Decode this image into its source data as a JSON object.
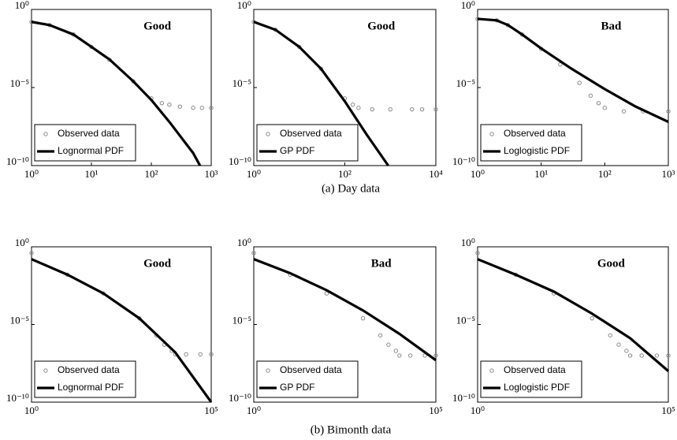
{
  "captions": [
    "(a) Day data",
    "(b) Bimonth data"
  ],
  "chart_data": [
    {
      "type": "line",
      "annotation": "Good",
      "xscale": "log",
      "yscale": "log",
      "legend": "lower left",
      "xlim": [
        1,
        1000
      ],
      "xticks": [
        {
          "value": 1,
          "label": "10⁰"
        },
        {
          "value": 10,
          "label": "10¹"
        },
        {
          "value": 100,
          "label": "10²"
        },
        {
          "value": 1000,
          "label": "10³"
        }
      ],
      "ylim": [
        1e-10,
        1
      ],
      "yticks": [
        {
          "value": 1,
          "label": "10⁰"
        },
        {
          "value": 1e-05,
          "label": "10⁻⁵"
        },
        {
          "value": 1e-10,
          "label": "10⁻¹⁰"
        }
      ],
      "series": [
        {
          "name": "Observed data",
          "color": "#8a8a8a",
          "marker": true,
          "x": [
            1,
            2,
            5,
            10,
            20,
            50,
            100,
            150,
            200,
            300,
            500,
            700,
            1000
          ],
          "values": [
            0.16,
            0.1,
            0.025,
            0.004,
            0.0006,
            2.5e-05,
            2e-06,
            1e-06,
            8e-07,
            6e-07,
            5e-07,
            5e-07,
            5e-07
          ]
        },
        {
          "name": "Lognormal PDF",
          "color": "#000000",
          "marker": false,
          "x": [
            1,
            2,
            5,
            10,
            20,
            50,
            100,
            200,
            500,
            650
          ],
          "values": [
            0.16,
            0.1,
            0.025,
            0.004,
            0.00063,
            2.5e-05,
            1.6e-06,
            6.3e-08,
            6.3e-10,
            1e-10
          ]
        }
      ]
    },
    {
      "type": "line",
      "annotation": "Good",
      "xscale": "log",
      "yscale": "log",
      "legend": "lower left",
      "xlim": [
        1,
        10000
      ],
      "xticks": [
        {
          "value": 1,
          "label": "10⁰"
        },
        {
          "value": 100,
          "label": "10²"
        },
        {
          "value": 10000,
          "label": "10⁴"
        }
      ],
      "ylim": [
        1e-10,
        1
      ],
      "yticks": [
        {
          "value": 1,
          "label": "10⁰"
        },
        {
          "value": 1e-05,
          "label": "10⁻⁵"
        },
        {
          "value": 1e-10,
          "label": "10⁻¹⁰"
        }
      ],
      "series": [
        {
          "name": "Observed data",
          "color": "#8a8a8a",
          "marker": true,
          "x": [
            1,
            3,
            10,
            30,
            100,
            150,
            200,
            400,
            1000,
            3000,
            5000,
            10000
          ],
          "values": [
            0.16,
            0.05,
            0.004,
            0.00016,
            2e-06,
            8e-07,
            5e-07,
            4e-07,
            4e-07,
            4e-07,
            4e-07,
            4e-07
          ]
        },
        {
          "name": "GP PDF",
          "color": "#000000",
          "marker": false,
          "x": [
            1,
            3,
            10,
            30,
            100,
            300,
            900
          ],
          "values": [
            0.16,
            0.05,
            0.004,
            0.00016,
            1.3e-06,
            1e-08,
            1e-10
          ]
        }
      ]
    },
    {
      "type": "line",
      "annotation": "Bad",
      "xscale": "log",
      "yscale": "log",
      "legend": "lower left",
      "xlim": [
        1,
        1000
      ],
      "xticks": [
        {
          "value": 1,
          "label": "10⁰"
        },
        {
          "value": 10,
          "label": "10¹"
        },
        {
          "value": 100,
          "label": "10²"
        },
        {
          "value": 1000,
          "label": "10³"
        }
      ],
      "ylim": [
        1e-10,
        1
      ],
      "yticks": [
        {
          "value": 1,
          "label": "10⁰"
        },
        {
          "value": 1e-05,
          "label": "10⁻⁵"
        },
        {
          "value": 1e-10,
          "label": "10⁻¹⁰"
        }
      ],
      "series": [
        {
          "name": "Observed data",
          "color": "#8a8a8a",
          "marker": true,
          "x": [
            1,
            2,
            3,
            5,
            10,
            20,
            40,
            60,
            80,
            100,
            200,
            400,
            1000
          ],
          "values": [
            0.25,
            0.2,
            0.1,
            0.025,
            0.003,
            0.0003,
            2e-05,
            3e-06,
            1e-06,
            5e-07,
            3e-07,
            3e-07,
            3e-07
          ]
        },
        {
          "name": "Loglogistic PDF",
          "color": "#000000",
          "marker": false,
          "x": [
            1,
            2,
            3,
            5,
            10,
            30,
            100,
            300,
            1000
          ],
          "values": [
            0.25,
            0.2,
            0.1,
            0.025,
            0.0032,
            0.00016,
            7.9e-06,
            6.3e-07,
            6.3e-08
          ]
        }
      ]
    },
    {
      "type": "line",
      "annotation": "Good",
      "xscale": "log",
      "yscale": "log",
      "legend": "lower left",
      "xlim": [
        1,
        100000
      ],
      "xticks": [
        {
          "value": 1,
          "label": "10⁰"
        },
        {
          "value": 100000,
          "label": "10⁵"
        }
      ],
      "ylim": [
        1e-10,
        1
      ],
      "yticks": [
        {
          "value": 1,
          "label": "10⁰"
        },
        {
          "value": 1e-05,
          "label": "10⁻⁵"
        },
        {
          "value": 1e-10,
          "label": "10⁻¹⁰"
        }
      ],
      "series": [
        {
          "name": "Observed data",
          "color": "#8a8a8a",
          "marker": true,
          "x": [
            1,
            10,
            100,
            1000,
            3000,
            5000,
            8000,
            10000,
            20000,
            50000,
            100000
          ],
          "values": [
            0.4,
            0.016,
            0.001,
            2.5e-05,
            2e-06,
            5e-07,
            2e-07,
            1.2e-07,
            1.2e-07,
            1.2e-07,
            1.2e-07
          ]
        },
        {
          "name": "Lognormal PDF",
          "color": "#000000",
          "marker": false,
          "x": [
            1,
            10,
            100,
            1000,
            10000,
            100000
          ],
          "values": [
            0.16,
            0.016,
            0.001,
            2.5e-05,
            1.6e-07,
            1e-10
          ]
        }
      ]
    },
    {
      "type": "line",
      "annotation": "Bad",
      "xscale": "log",
      "yscale": "log",
      "legend": "lower left",
      "xlim": [
        1,
        100000
      ],
      "xticks": [
        {
          "value": 1,
          "label": "10⁰"
        },
        {
          "value": 100000,
          "label": "10⁵"
        }
      ],
      "ylim": [
        1e-10,
        1
      ],
      "yticks": [
        {
          "value": 1,
          "label": "10⁰"
        },
        {
          "value": 1e-05,
          "label": "10⁻⁵"
        },
        {
          "value": 1e-10,
          "label": "10⁻¹⁰"
        }
      ],
      "series": [
        {
          "name": "Observed data",
          "color": "#8a8a8a",
          "marker": true,
          "x": [
            1,
            10,
            100,
            1000,
            3000,
            5000,
            8000,
            10000,
            20000,
            50000,
            100000
          ],
          "values": [
            0.4,
            0.016,
            0.001,
            2.5e-05,
            2e-06,
            5e-07,
            2e-07,
            1e-07,
            1e-07,
            1e-07,
            1e-07
          ]
        },
        {
          "name": "GP PDF",
          "color": "#000000",
          "marker": false,
          "x": [
            1,
            10,
            100,
            1000,
            10000,
            100000
          ],
          "values": [
            0.16,
            0.02,
            0.0016,
            8e-05,
            2.5e-06,
            5e-08
          ]
        }
      ]
    },
    {
      "type": "line",
      "annotation": "Good",
      "xscale": "log",
      "yscale": "log",
      "legend": "lower left",
      "xlim": [
        1,
        100000
      ],
      "xticks": [
        {
          "value": 1,
          "label": "10⁰"
        },
        {
          "value": 100000,
          "label": "10⁵"
        }
      ],
      "ylim": [
        1e-10,
        1
      ],
      "yticks": [
        {
          "value": 1,
          "label": "10⁰"
        },
        {
          "value": 1e-05,
          "label": "10⁻⁵"
        },
        {
          "value": 1e-10,
          "label": "10⁻¹⁰"
        }
      ],
      "series": [
        {
          "name": "Observed data",
          "color": "#8a8a8a",
          "marker": true,
          "x": [
            1,
            10,
            100,
            1000,
            3000,
            5000,
            8000,
            10000,
            20000,
            50000,
            100000
          ],
          "values": [
            0.4,
            0.016,
            0.001,
            2.5e-05,
            2e-06,
            5e-07,
            2e-07,
            1e-07,
            1e-07,
            1e-07,
            1e-07
          ]
        },
        {
          "name": "Loglogistic PDF",
          "color": "#000000",
          "marker": false,
          "x": [
            1,
            10,
            100,
            1000,
            10000,
            100000
          ],
          "values": [
            0.16,
            0.016,
            0.0013,
            5e-05,
            1.3e-06,
            1e-08
          ]
        }
      ]
    }
  ]
}
